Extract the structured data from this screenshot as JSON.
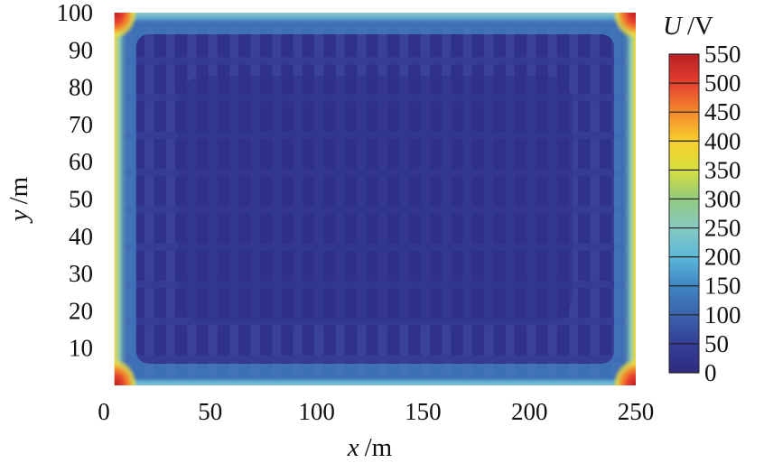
{
  "chart_data": {
    "type": "heatmap",
    "title": "",
    "xlabel": {
      "var": "x",
      "unit": "/m"
    },
    "ylabel": {
      "var": "y",
      "unit": "/m"
    },
    "xlim": [
      0,
      250
    ],
    "ylim": [
      0,
      100
    ],
    "x_ticks": [
      0,
      50,
      100,
      150,
      200,
      250
    ],
    "y_ticks": [
      10,
      20,
      30,
      40,
      50,
      60,
      70,
      80,
      90,
      100
    ],
    "field_extent": {
      "x": [
        5,
        250
      ],
      "y": [
        0,
        100
      ]
    },
    "colorbar": {
      "label": {
        "var": "U",
        "unit": "/V"
      },
      "min": 0,
      "max": 550,
      "ticks": [
        0,
        50,
        100,
        150,
        200,
        250,
        300,
        350,
        400,
        450,
        500,
        550
      ],
      "colors": [
        "#2e2a7f",
        "#343f97",
        "#3a63ac",
        "#3f85c4",
        "#5bb8d8",
        "#86c9c2",
        "#93c97f",
        "#d6df3e",
        "#f8cf2c",
        "#f3892d",
        "#e5402e",
        "#b81f24"
      ]
    },
    "field_description_values": {
      "interior": 20,
      "edge_band": 120,
      "bottom_edge": 180,
      "top_edge": 220,
      "side_edges": 320,
      "corners": 520
    }
  }
}
